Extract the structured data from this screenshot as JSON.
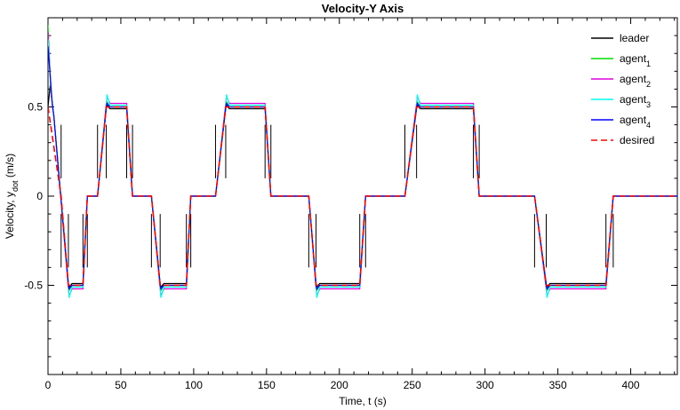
{
  "chart_data": {
    "type": "line",
    "title": "Velocity-Y Axis",
    "xlabel": "Time, t (s)",
    "ylabel": {
      "prefix": "Velocity, y",
      "sub": "dot",
      "suffix": " (m/s)"
    },
    "xlim": [
      0,
      432
    ],
    "ylim": [
      -1,
      1
    ],
    "xticks": [
      0,
      50,
      100,
      150,
      200,
      250,
      300,
      350,
      400
    ],
    "yticks": [
      -0.5,
      0,
      0.5
    ],
    "ytick_labels": [
      "-0.5",
      "0",
      "0.5"
    ],
    "legend_position": "top-right",
    "desired": {
      "name": "desired",
      "color": "#ff0000",
      "dash": true,
      "x": [
        0,
        9,
        14,
        24,
        27,
        34,
        40,
        54,
        58,
        71,
        77,
        95,
        98,
        115,
        122,
        149,
        153,
        179,
        184,
        214,
        218,
        245,
        253,
        292,
        296,
        334,
        342,
        383,
        388,
        432
      ],
      "y": [
        0.5,
        0,
        -0.5,
        -0.5,
        0,
        0,
        0.5,
        0.5,
        0,
        0,
        -0.5,
        -0.5,
        0,
        0,
        0.5,
        0.5,
        0,
        0,
        -0.5,
        -0.5,
        0,
        0,
        0.5,
        0.5,
        0,
        0,
        -0.5,
        -0.5,
        0,
        0
      ]
    },
    "series": [
      {
        "name": "leader",
        "sub": "",
        "color": "#000000",
        "offset": -0.01,
        "overshoot": 0.02,
        "spike": 0.15
      },
      {
        "name": "agent",
        "sub": "1",
        "color": "#00dd00",
        "offset": 0.0,
        "overshoot": 0.03,
        "spike": 0
      },
      {
        "name": "agent",
        "sub": "2",
        "color": "#dd00dd",
        "offset": 0.02,
        "overshoot": 0.04,
        "spike": 0
      },
      {
        "name": "agent",
        "sub": "3",
        "color": "#00ffee",
        "offset": 0.01,
        "overshoot": 0.06,
        "spike": 0
      },
      {
        "name": "agent",
        "sub": "4",
        "color": "#0000ff",
        "offset": 0.0,
        "overshoot": 0.02,
        "spike": 0
      }
    ]
  }
}
